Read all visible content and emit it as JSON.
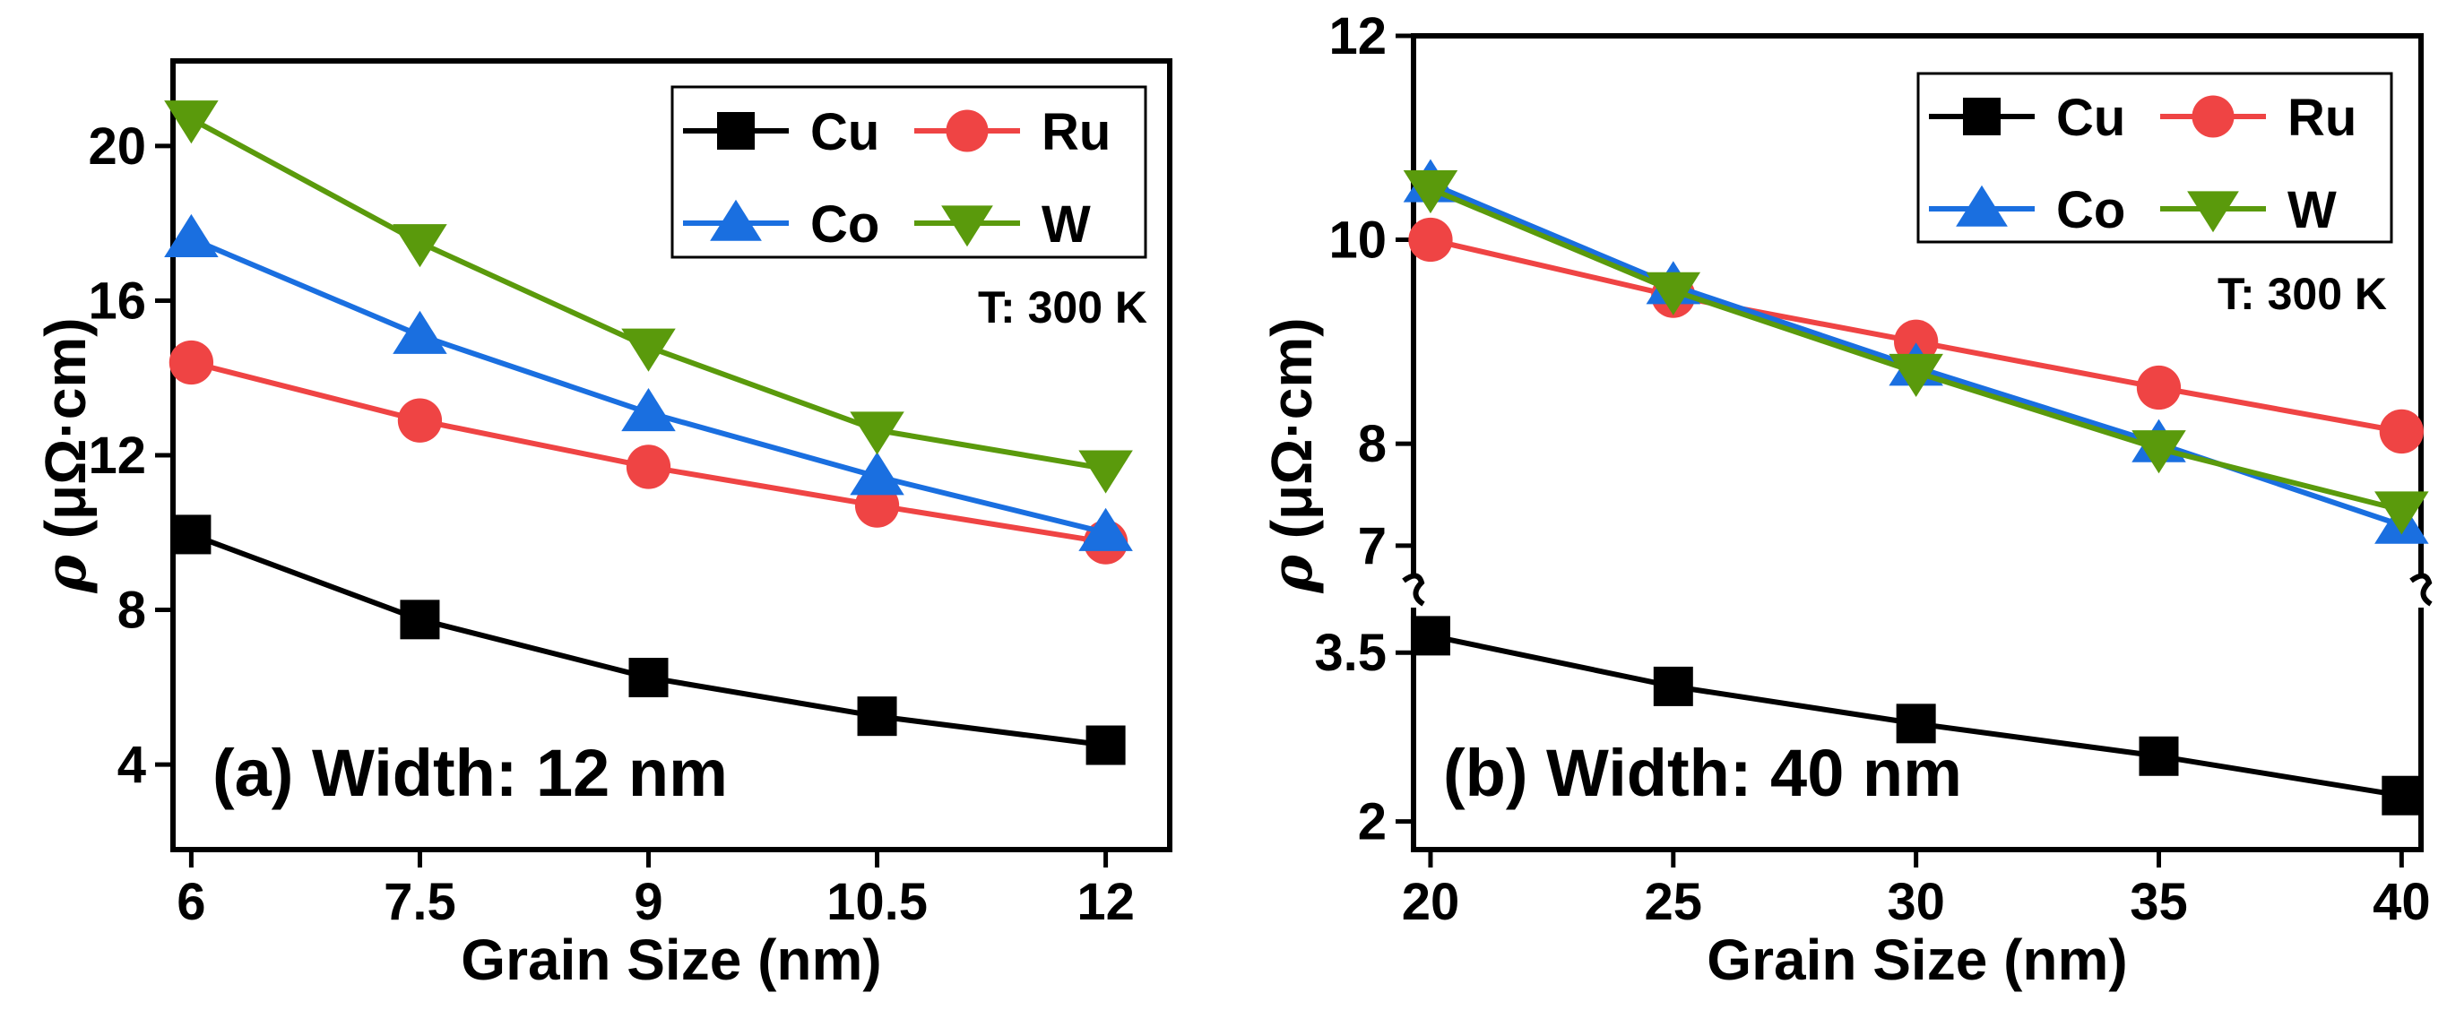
{
  "chart_data": [
    {
      "type": "line",
      "panel_label": "(a) Width: 12 nm",
      "annotation": "T: 300 K",
      "xlabel": "Grain Size (nm)",
      "ylabel_symbol": "ρ",
      "ylabel_units": " (μΩ·cm)",
      "x": [
        6,
        7.5,
        9,
        10.5,
        12
      ],
      "x_tick_labels": [
        "6",
        "7.5",
        "9",
        "10.5",
        "12"
      ],
      "xlim": [
        5.88,
        12.42
      ],
      "ylim": [
        1.8,
        22.2
      ],
      "y_ticks": [
        4,
        8,
        12,
        16,
        20
      ],
      "y_tick_labels": [
        "4",
        "8",
        "12",
        "16",
        "20"
      ],
      "series": [
        {
          "name": "Cu",
          "color": "#000000",
          "marker": "square",
          "values": [
            9.95,
            7.75,
            6.25,
            5.25,
            4.5
          ]
        },
        {
          "name": "Ru",
          "color": "#ef4444",
          "marker": "circle",
          "values": [
            14.4,
            12.9,
            11.7,
            10.7,
            9.75
          ]
        },
        {
          "name": "Co",
          "color": "#1a6fe0",
          "marker": "triangle-up",
          "values": [
            17.6,
            15.1,
            13.1,
            11.45,
            10.0
          ]
        },
        {
          "name": "W",
          "color": "#5a9a0c",
          "marker": "triangle-down",
          "values": [
            20.7,
            17.5,
            14.8,
            12.65,
            11.65
          ]
        }
      ],
      "legend": [
        "Cu",
        "Ru",
        "Co",
        "W"
      ]
    },
    {
      "type": "line",
      "panel_label": "(b) Width: 40 nm",
      "annotation": "T: 300 K",
      "xlabel": "Grain Size (nm)",
      "ylabel_symbol": "ρ",
      "ylabel_units": " (μΩ·cm)",
      "x": [
        20,
        25,
        30,
        35,
        40
      ],
      "x_tick_labels": [
        "20",
        "25",
        "30",
        "35",
        "40"
      ],
      "xlim": [
        19.65,
        40.4
      ],
      "y_axis_break": true,
      "y_segments": [
        {
          "range": [
            1.75,
            3.9
          ],
          "ticks": [
            2,
            3.5
          ],
          "tick_labels": [
            "2",
            "3.5"
          ]
        },
        {
          "range": [
            6.7,
            12.0
          ],
          "ticks": [
            7,
            8,
            10,
            12
          ],
          "tick_labels": [
            "7",
            "8",
            "10",
            "12"
          ]
        }
      ],
      "series": [
        {
          "name": "Cu",
          "color": "#000000",
          "marker": "square",
          "values": [
            3.65,
            3.2,
            2.87,
            2.58,
            2.23
          ]
        },
        {
          "name": "Ru",
          "color": "#ef4444",
          "marker": "circle",
          "values": [
            10.0,
            9.45,
            9.0,
            8.55,
            8.12
          ]
        },
        {
          "name": "Co",
          "color": "#1a6fe0",
          "marker": "triangle-up",
          "values": [
            10.55,
            9.55,
            8.75,
            8.0,
            7.2
          ]
        },
        {
          "name": "W",
          "color": "#5a9a0c",
          "marker": "triangle-down",
          "values": [
            10.5,
            9.5,
            8.7,
            7.95,
            7.35
          ]
        }
      ],
      "legend": [
        "Cu",
        "Ru",
        "Co",
        "W"
      ]
    }
  ]
}
